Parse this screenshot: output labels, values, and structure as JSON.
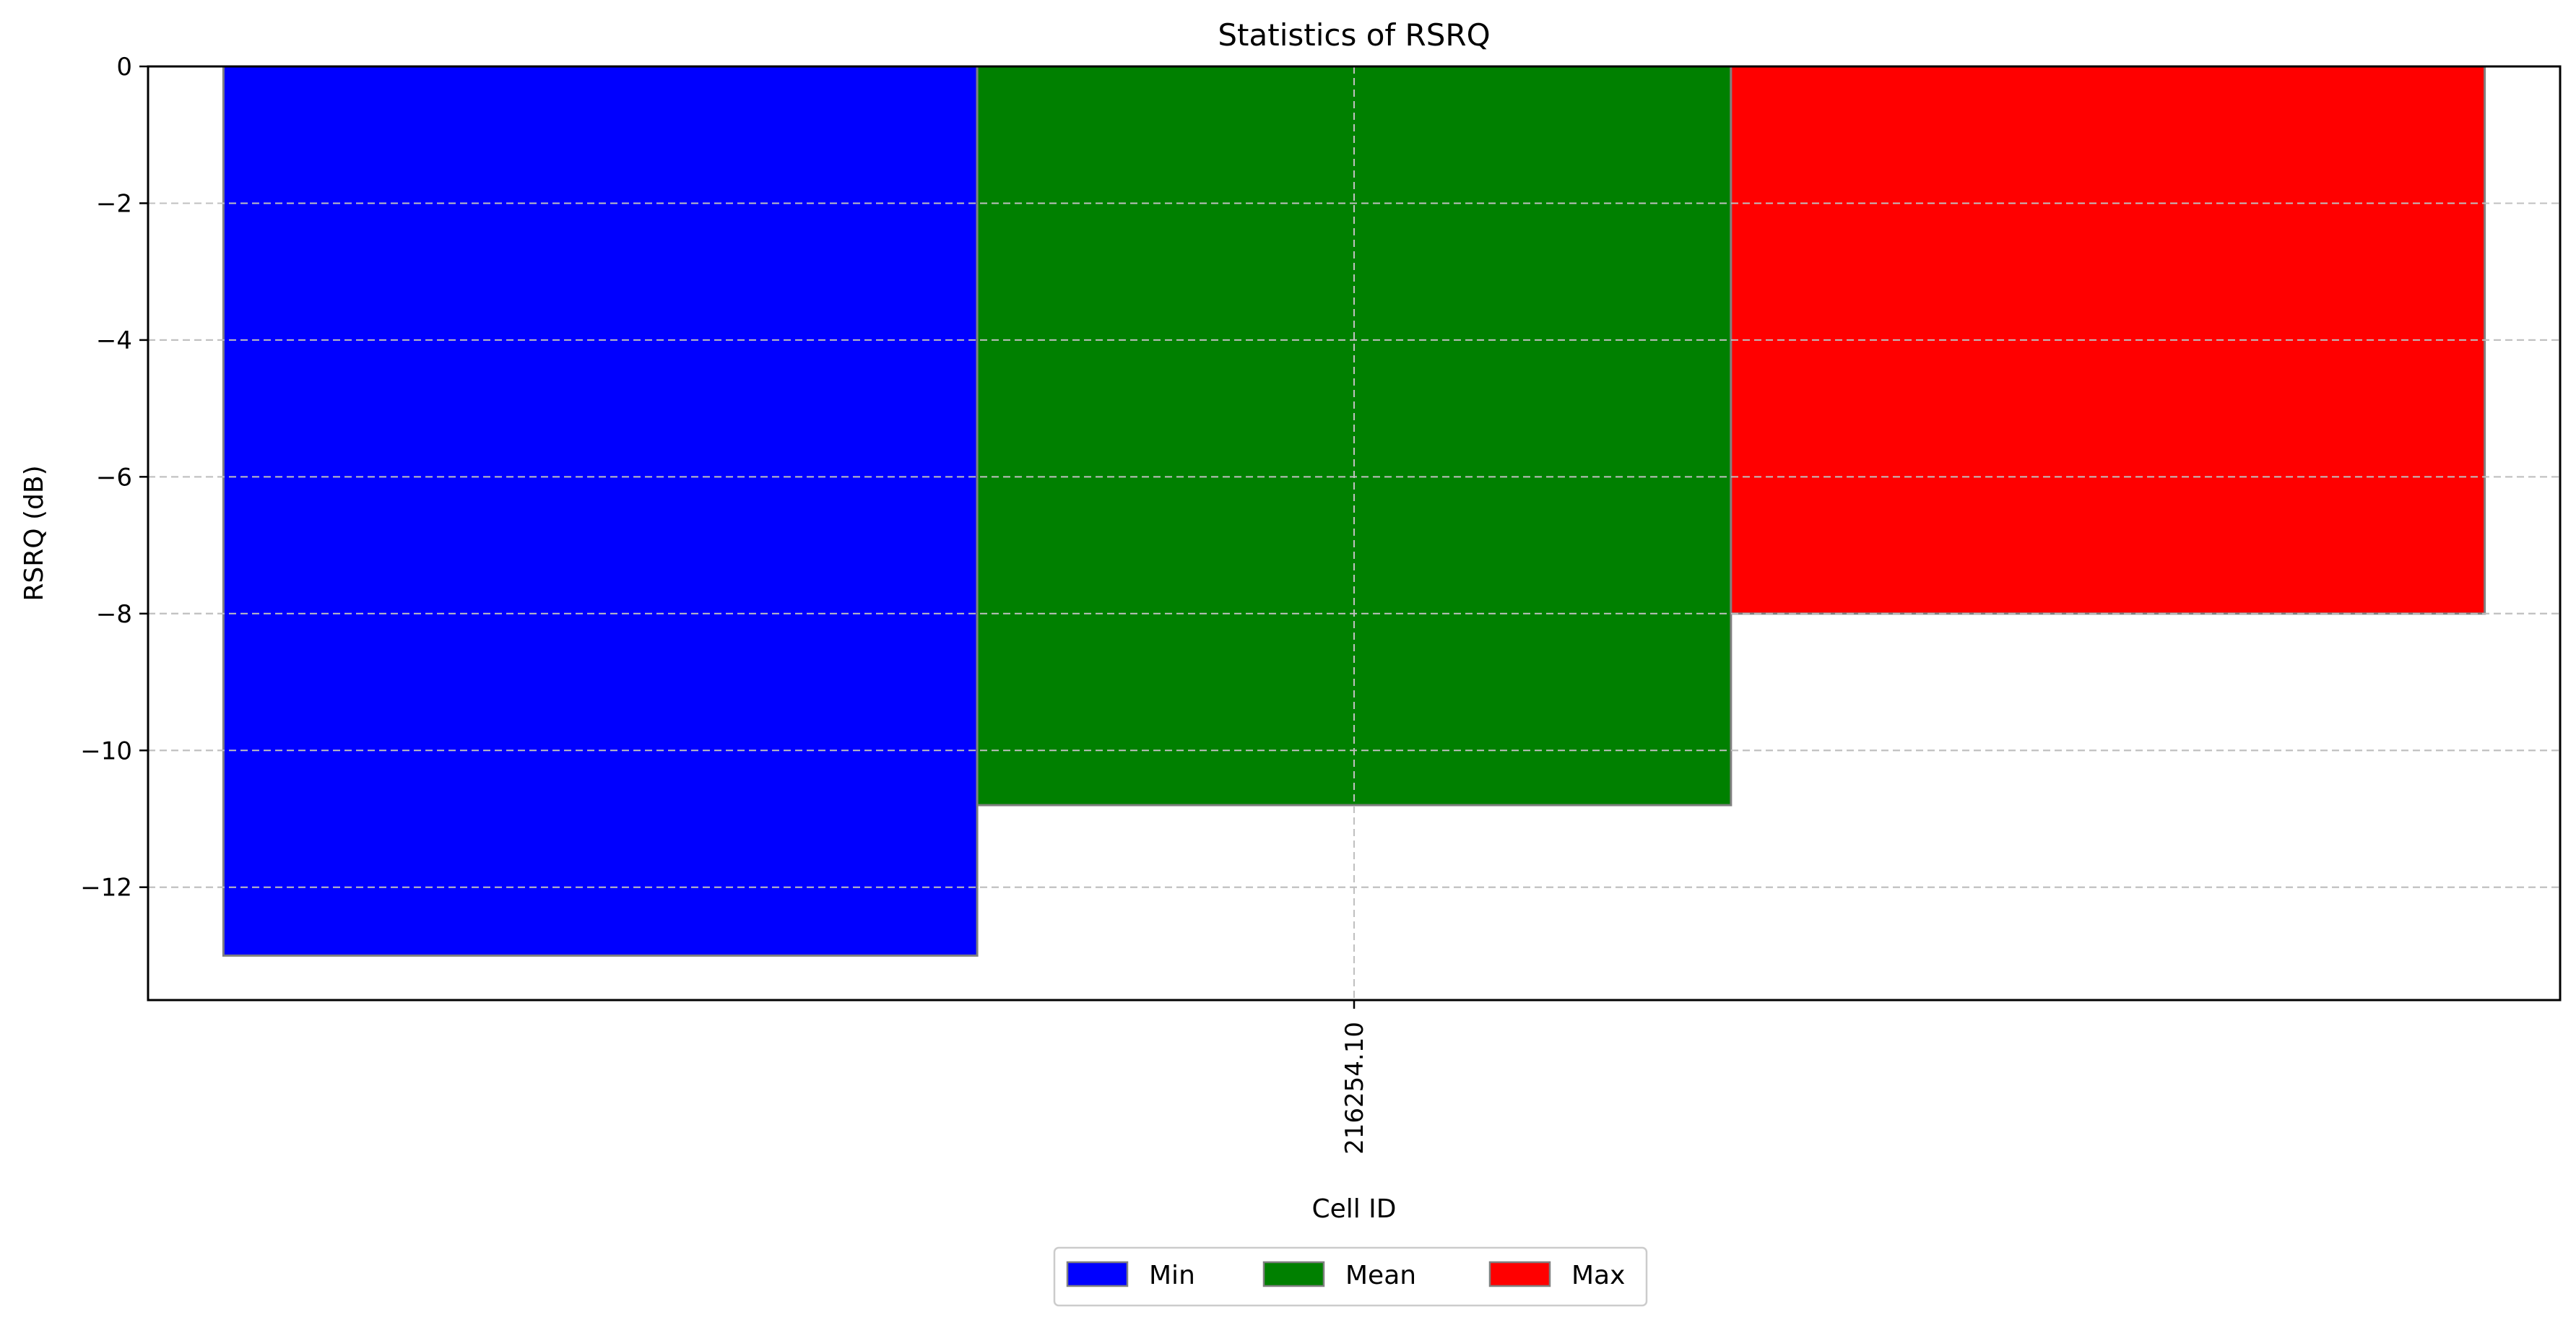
{
  "chart_data": {
    "type": "bar",
    "title": "Statistics of RSRQ",
    "xlabel": "Cell ID",
    "ylabel": "RSRQ (dB)",
    "categories": [
      "216254.10"
    ],
    "series": [
      {
        "name": "Min",
        "values": [
          -13.0
        ],
        "color": "#0000ff"
      },
      {
        "name": "Mean",
        "values": [
          -10.8
        ],
        "color": "#008000"
      },
      {
        "name": "Max",
        "values": [
          -8.0
        ],
        "color": "#ff0000"
      }
    ],
    "ylim": [
      -13.65,
      0
    ],
    "yticks": [
      0,
      -2,
      -4,
      -6,
      -8,
      -10,
      -12
    ],
    "ytick_labels": [
      "0",
      "−2",
      "−4",
      "−6",
      "−8",
      "−10",
      "−12"
    ],
    "grid": true,
    "legend_position": "bottom-center",
    "bar_edge_color": "#808080",
    "grid_color": "#c0c0c0"
  }
}
